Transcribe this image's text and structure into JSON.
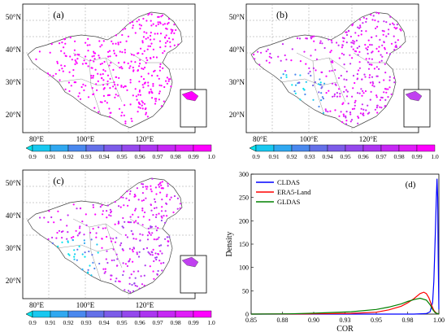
{
  "map_panels": [
    {
      "label": "(a)"
    },
    {
      "label": "(b)"
    },
    {
      "label": "(c)"
    }
  ],
  "map_axes": {
    "lat_ticks": [
      "50°N",
      "40°N",
      "30°N",
      "20°N"
    ],
    "lon_ticks": [
      "80°E",
      "100°E",
      "120°E"
    ]
  },
  "colorbar": {
    "ticks": [
      "0.9",
      "0.91",
      "0.92",
      "0.93",
      "0.94",
      "0.95",
      "0.96",
      "0.97",
      "0.98",
      "0.99",
      "1.0"
    ],
    "colors": [
      "#00e5ee",
      "#18c8f0",
      "#30a8f0",
      "#4a88ee",
      "#6470e8",
      "#7c5ce8",
      "#9448ec",
      "#ac34f0",
      "#c628f4",
      "#e01cf8",
      "#ff00ff"
    ]
  },
  "chart_data": {
    "type": "line",
    "label": "(d)",
    "xlabel": "COR",
    "ylabel": "Density",
    "xlim": [
      0.85,
      1.0
    ],
    "ylim": [
      0,
      300
    ],
    "xticks": [
      "0.85",
      "0.88",
      "0.90",
      "0.93",
      "0.95",
      "0.98",
      "1.00"
    ],
    "xtick_values": [
      0.85,
      0.875,
      0.9,
      0.925,
      0.95,
      0.975,
      1.0
    ],
    "yticks": [
      0,
      50,
      100,
      150,
      200,
      250,
      300
    ],
    "legend_position": "top-left",
    "series": [
      {
        "name": "CLDAS",
        "color": "#0000ff",
        "x": [
          0.85,
          0.98,
          0.99,
          0.993,
          0.995,
          0.996,
          0.997,
          0.998,
          0.9985,
          0.999,
          0.9995,
          1.0
        ],
        "y": [
          0,
          0,
          1,
          5,
          25,
          70,
          160,
          250,
          290,
          250,
          120,
          10
        ]
      },
      {
        "name": "ERA5-Land",
        "color": "#ff0000",
        "x": [
          0.85,
          0.9,
          0.93,
          0.95,
          0.96,
          0.97,
          0.975,
          0.98,
          0.985,
          0.988,
          0.99,
          0.992,
          0.994,
          0.996,
          0.998,
          1.0
        ],
        "y": [
          0,
          0.5,
          1.5,
          4,
          9,
          17,
          24,
          33,
          44,
          47,
          44,
          35,
          20,
          8,
          2,
          0
        ]
      },
      {
        "name": "GLDAS",
        "color": "#008000",
        "x": [
          0.85,
          0.88,
          0.9,
          0.93,
          0.95,
          0.96,
          0.97,
          0.975,
          0.98,
          0.985,
          0.99,
          0.993,
          0.995,
          0.997,
          1.0
        ],
        "y": [
          0,
          0.5,
          2,
          5,
          10,
          15,
          22,
          27,
          31,
          34,
          30,
          20,
          10,
          3,
          0
        ]
      }
    ]
  }
}
